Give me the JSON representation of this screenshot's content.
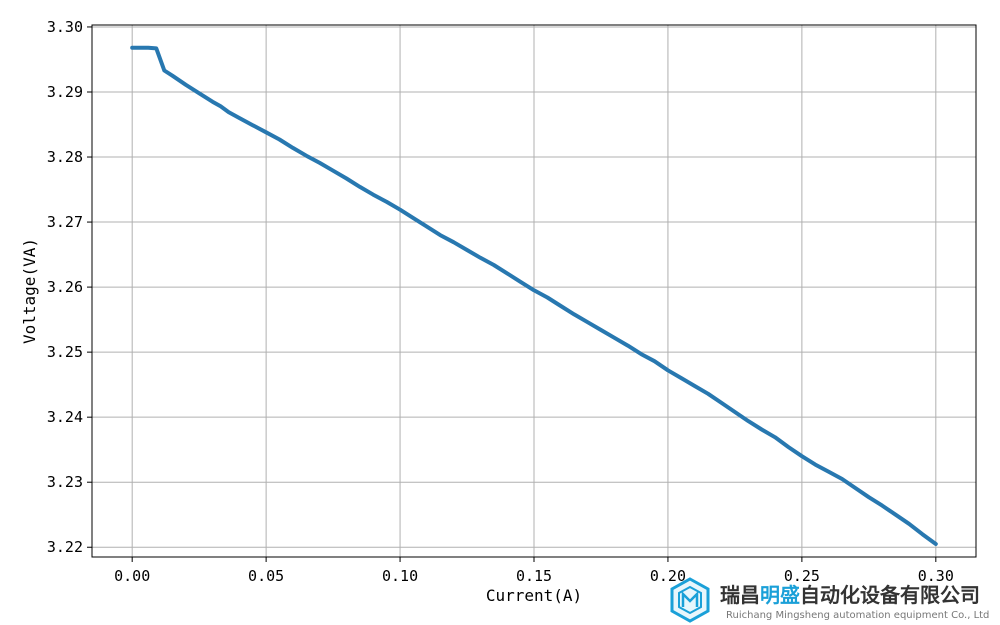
{
  "chart_data": {
    "type": "line",
    "title": "",
    "xlabel": "Current(A)",
    "ylabel": "Voltage(VA)",
    "xlim": [
      -0.015,
      0.315
    ],
    "ylim": [
      3.2185,
      3.3003
    ],
    "xticks": [
      0.0,
      0.05,
      0.1,
      0.15,
      0.2,
      0.25,
      0.3
    ],
    "xtick_labels": [
      "0.00",
      "0.05",
      "0.10",
      "0.15",
      "0.20",
      "0.25",
      "0.30"
    ],
    "yticks": [
      3.22,
      3.23,
      3.24,
      3.25,
      3.26,
      3.27,
      3.28,
      3.29,
      3.3
    ],
    "ytick_labels": [
      "3.22",
      "3.23",
      "3.24",
      "3.25",
      "3.26",
      "3.27",
      "3.28",
      "3.29",
      "3.30"
    ],
    "grid": true,
    "series": [
      {
        "color": "#2878b0",
        "x": [
          0.0,
          0.003,
          0.006,
          0.009,
          0.012,
          0.015,
          0.02,
          0.025,
          0.03,
          0.033,
          0.036,
          0.04,
          0.045,
          0.05,
          0.055,
          0.06,
          0.065,
          0.07,
          0.075,
          0.08,
          0.085,
          0.09,
          0.095,
          0.1,
          0.105,
          0.11,
          0.115,
          0.12,
          0.125,
          0.13,
          0.135,
          0.14,
          0.145,
          0.15,
          0.155,
          0.16,
          0.165,
          0.17,
          0.175,
          0.18,
          0.185,
          0.19,
          0.195,
          0.2,
          0.205,
          0.21,
          0.215,
          0.22,
          0.225,
          0.23,
          0.235,
          0.24,
          0.245,
          0.25,
          0.255,
          0.26,
          0.265,
          0.27,
          0.275,
          0.28,
          0.285,
          0.29,
          0.295,
          0.3
        ],
        "y": [
          3.2968,
          3.2968,
          3.2968,
          3.2967,
          3.2933,
          3.2925,
          3.2911,
          3.2898,
          3.2885,
          3.2878,
          3.2869,
          3.286,
          3.2849,
          3.2838,
          3.2827,
          3.2814,
          3.2802,
          3.2791,
          3.2779,
          3.2767,
          3.2754,
          3.2742,
          3.2731,
          3.2719,
          3.2706,
          3.2693,
          3.268,
          3.2669,
          3.2657,
          3.2645,
          3.2634,
          3.2621,
          3.2608,
          3.2595,
          3.2584,
          3.2571,
          3.2558,
          3.2546,
          3.2534,
          3.2522,
          3.251,
          3.2497,
          3.2486,
          3.2472,
          3.246,
          3.2448,
          3.2436,
          3.2422,
          3.2408,
          3.2394,
          3.2381,
          3.2369,
          3.2354,
          3.234,
          3.2327,
          3.2316,
          3.2305,
          3.2291,
          3.2277,
          3.2264,
          3.225,
          3.2236,
          3.222,
          3.2205
        ]
      }
    ]
  },
  "watermark": {
    "company_name_cn": "瑞昌明盛自动化设备有限公司",
    "company_name_en": "Ruichang Mingsheng automation equipment Co., Ltd"
  }
}
